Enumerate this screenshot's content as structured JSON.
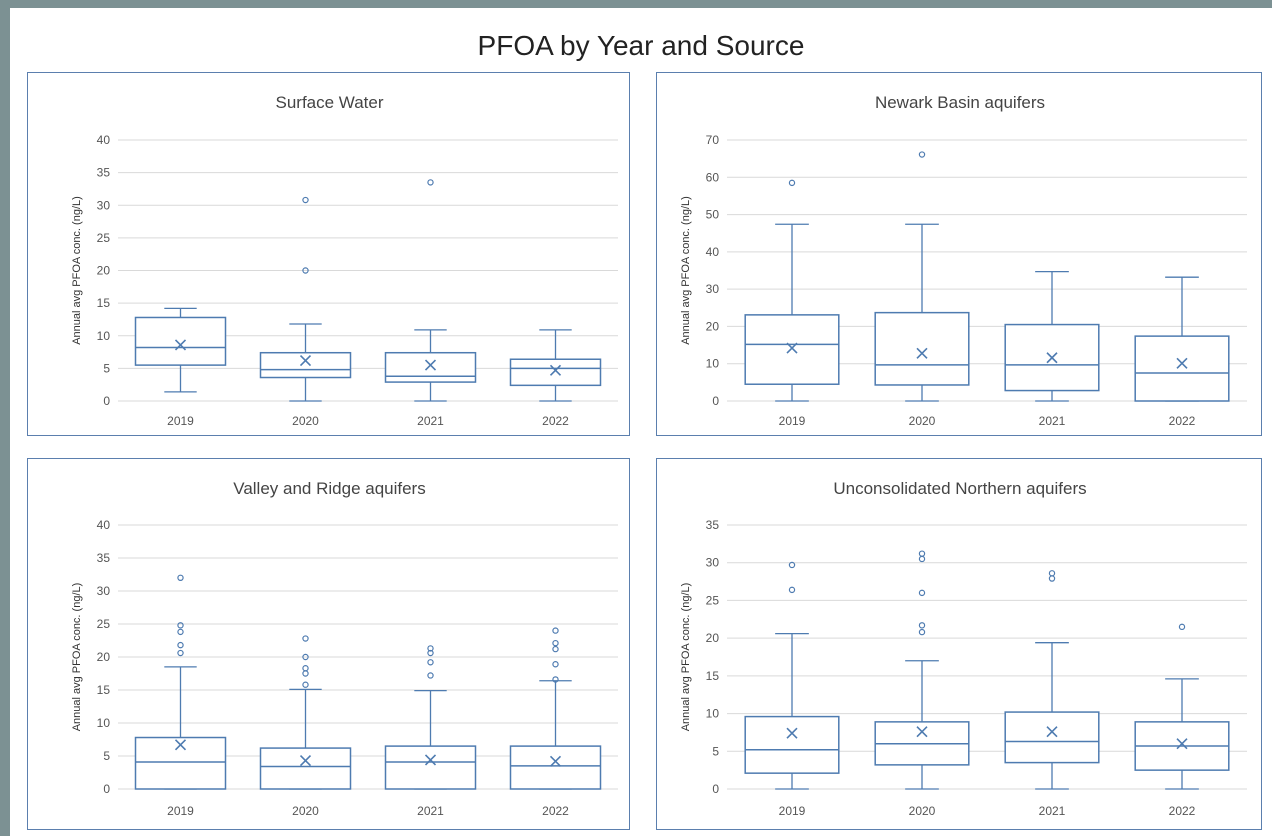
{
  "page": {
    "title": "PFOA by Year and Source",
    "colors": {
      "stroke": "#4e7bb0",
      "grid": "#d9d9d9",
      "panel_border": "#5b7fae",
      "background": "#7c9193"
    }
  },
  "chart_data": [
    {
      "type": "box",
      "title": "Surface Water",
      "ylabel": "Annual avg PFOA conc. (ng/L)",
      "ylim": [
        0,
        40
      ],
      "yticks": [
        0,
        5,
        10,
        15,
        20,
        25,
        30,
        35,
        40
      ],
      "categories": [
        "2019",
        "2020",
        "2021",
        "2022"
      ],
      "boxes": [
        {
          "min": 1.4,
          "q1": 5.5,
          "median": 8.2,
          "q3": 12.8,
          "max": 14.2,
          "mean": 8.6,
          "outliers": []
        },
        {
          "min": 0,
          "q1": 3.6,
          "median": 4.8,
          "q3": 7.4,
          "max": 11.8,
          "mean": 6.2,
          "outliers": [
            20,
            30.8
          ]
        },
        {
          "min": 0,
          "q1": 2.9,
          "median": 3.8,
          "q3": 7.4,
          "max": 10.9,
          "mean": 5.5,
          "outliers": [
            33.5
          ]
        },
        {
          "min": 0,
          "q1": 2.4,
          "median": 5.0,
          "q3": 6.4,
          "max": 10.9,
          "mean": 4.7,
          "outliers": []
        }
      ]
    },
    {
      "type": "box",
      "title": "Newark Basin aquifers",
      "ylabel": "Annual avg PFOA conc. (ng/L)",
      "ylim": [
        0,
        70
      ],
      "yticks": [
        0,
        10,
        20,
        30,
        40,
        50,
        60,
        70
      ],
      "categories": [
        "2019",
        "2020",
        "2021",
        "2022"
      ],
      "boxes": [
        {
          "min": 0,
          "q1": 4.5,
          "median": 15.2,
          "q3": 23.1,
          "max": 47.4,
          "mean": 14.2,
          "outliers": [
            58.5
          ]
        },
        {
          "min": 0,
          "q1": 4.3,
          "median": 9.7,
          "q3": 23.7,
          "max": 47.4,
          "mean": 12.8,
          "outliers": [
            66.1
          ]
        },
        {
          "min": 0,
          "q1": 2.8,
          "median": 9.7,
          "q3": 20.5,
          "max": 34.7,
          "mean": 11.6,
          "outliers": []
        },
        {
          "min": 0,
          "q1": 0,
          "median": 7.5,
          "q3": 17.4,
          "max": 33.2,
          "mean": 10.1,
          "outliers": []
        }
      ]
    },
    {
      "type": "box",
      "title": "Valley and Ridge aquifers",
      "ylabel": "Annual avg PFOA conc. (ng/L)",
      "ylim": [
        0,
        40
      ],
      "yticks": [
        0,
        5,
        10,
        15,
        20,
        25,
        30,
        35,
        40
      ],
      "categories": [
        "2019",
        "2020",
        "2021",
        "2022"
      ],
      "boxes": [
        {
          "min": 0,
          "q1": 0,
          "median": 4.1,
          "q3": 7.8,
          "max": 18.5,
          "mean": 6.7,
          "outliers": [
            20.6,
            21.8,
            23.8,
            24.8,
            32.0
          ]
        },
        {
          "min": 0,
          "q1": 0,
          "median": 3.4,
          "q3": 6.2,
          "max": 15.1,
          "mean": 4.3,
          "outliers": [
            15.8,
            17.5,
            18.3,
            20.0,
            22.8
          ]
        },
        {
          "min": 0,
          "q1": 0,
          "median": 4.1,
          "q3": 6.5,
          "max": 14.9,
          "mean": 4.4,
          "outliers": [
            17.2,
            19.2,
            20.6,
            21.3
          ]
        },
        {
          "min": 0,
          "q1": 0,
          "median": 3.5,
          "q3": 6.5,
          "max": 16.4,
          "mean": 4.2,
          "outliers": [
            16.6,
            18.9,
            21.2,
            22.1,
            24.0
          ]
        }
      ]
    },
    {
      "type": "box",
      "title": "Unconsolidated Northern aquifers",
      "ylabel": "Annual avg PFOA conc. (ng/L)",
      "ylim": [
        0,
        35
      ],
      "yticks": [
        0,
        5,
        10,
        15,
        20,
        25,
        30,
        35
      ],
      "categories": [
        "2019",
        "2020",
        "2021",
        "2022"
      ],
      "boxes": [
        {
          "min": 0,
          "q1": 2.1,
          "median": 5.2,
          "q3": 9.6,
          "max": 20.6,
          "mean": 7.4,
          "outliers": [
            26.4,
            29.7
          ]
        },
        {
          "min": 0,
          "q1": 3.2,
          "median": 6.0,
          "q3": 8.9,
          "max": 17.0,
          "mean": 7.6,
          "outliers": [
            20.8,
            21.7,
            26.0,
            30.5,
            31.2
          ]
        },
        {
          "min": 0,
          "q1": 3.5,
          "median": 6.3,
          "q3": 10.2,
          "max": 19.4,
          "mean": 7.6,
          "outliers": [
            27.9,
            28.6
          ]
        },
        {
          "min": 0,
          "q1": 2.5,
          "median": 5.7,
          "q3": 8.9,
          "max": 14.6,
          "mean": 6.0,
          "outliers": [
            21.5
          ]
        }
      ]
    }
  ]
}
